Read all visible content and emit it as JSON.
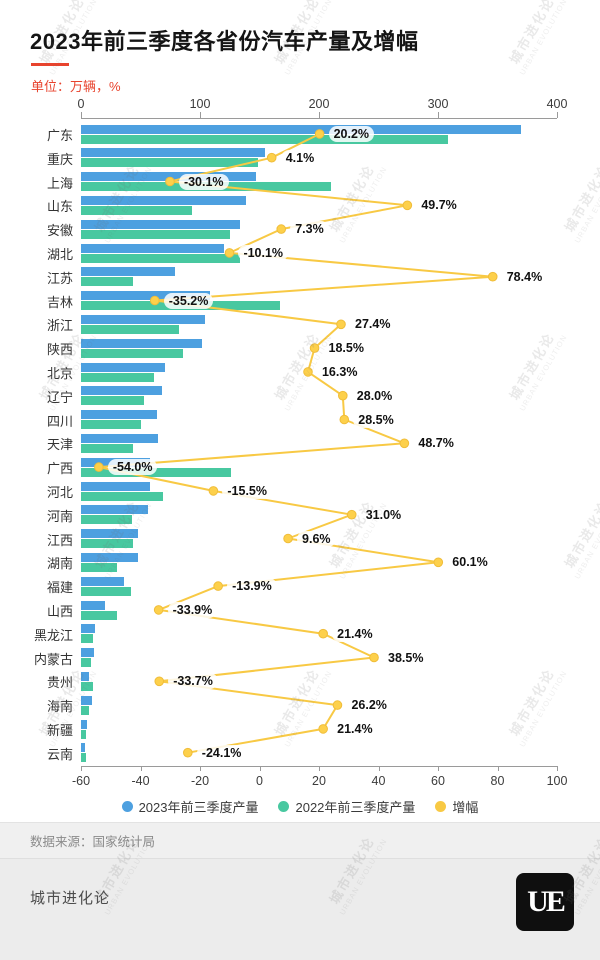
{
  "title": "2023年前三季度各省份汽车产量及增幅",
  "unit_label": "单位：万辆，%",
  "watermark_cn": "城市进化论",
  "watermark_en": "URBAN EVOLUTION",
  "accent_red": "#e8432d",
  "chart_data": {
    "type": "bar",
    "orientation": "horizontal-grouped",
    "title": "2023年前三季度各省份汽车产量及增幅",
    "unit": "万辆，%",
    "categories": [
      "广东",
      "重庆",
      "上海",
      "山东",
      "安徽",
      "湖北",
      "江苏",
      "吉林",
      "浙江",
      "陕西",
      "北京",
      "辽宁",
      "四川",
      "天津",
      "广西",
      "河北",
      "河南",
      "江西",
      "湖南",
      "福建",
      "山西",
      "黑龙江",
      "内蒙古",
      "贵州",
      "海南",
      "新疆",
      "云南"
    ],
    "series": [
      {
        "name": "2023年前三季度产量",
        "color": "#4da0e0",
        "values": [
          370,
          155,
          147,
          139,
          134,
          120,
          79,
          108,
          104,
          102,
          71,
          68,
          64,
          65,
          58,
          58,
          56,
          48,
          48,
          36,
          20,
          12,
          11,
          6.6,
          9,
          5,
          3.4
        ]
      },
      {
        "name": "2022年前三季度产量",
        "color": "#48c8a0",
        "values": [
          308,
          149,
          210,
          93,
          125,
          134,
          44,
          167,
          82,
          86,
          61,
          53,
          50,
          44,
          126,
          69,
          43,
          44,
          30,
          42,
          30,
          10,
          8,
          10,
          7,
          4,
          4.5
        ]
      }
    ],
    "growth": {
      "name": "增幅",
      "color": "#f8c944",
      "dot_fill": "#fdd04b",
      "dot_stroke": "#f0bd3a",
      "values": [
        20.2,
        4.1,
        -30.1,
        49.7,
        7.3,
        -10.1,
        78.4,
        -35.2,
        27.4,
        18.5,
        16.3,
        28.0,
        28.5,
        48.7,
        -54.0,
        -15.5,
        31.0,
        9.6,
        60.1,
        -13.9,
        -33.9,
        21.4,
        38.5,
        -33.7,
        26.2,
        21.4,
        -24.1
      ],
      "labels": [
        "20.2%",
        "4.1%",
        "-30.1%",
        "49.7%",
        "7.3%",
        "-10.1%",
        "78.4%",
        "-35.2%",
        "27.4%",
        "18.5%",
        "16.3%",
        "28.0%",
        "28.5%",
        "48.7%",
        "-54.0%",
        "-15.5%",
        "31.0%",
        "9.6%",
        "60.1%",
        "-13.9%",
        "-33.9%",
        "21.4%",
        "38.5%",
        "-33.7%",
        "26.2%",
        "21.4%",
        "-24.1%"
      ]
    },
    "top_axis": {
      "ticks": [
        0,
        100,
        200,
        300,
        400
      ],
      "range": [
        0,
        400
      ]
    },
    "bottom_axis": {
      "ticks": [
        -60,
        -40,
        -20,
        0,
        20,
        40,
        60,
        80,
        100
      ],
      "range": [
        -60,
        100
      ]
    },
    "legend": [
      "2023年前三季度产量",
      "2022年前三季度产量",
      "增幅"
    ],
    "legend_position": "bottom",
    "grid": false
  },
  "footer": {
    "source": "数据来源：国家统计局",
    "brand": "城市进化论",
    "logo_text": "UE"
  }
}
